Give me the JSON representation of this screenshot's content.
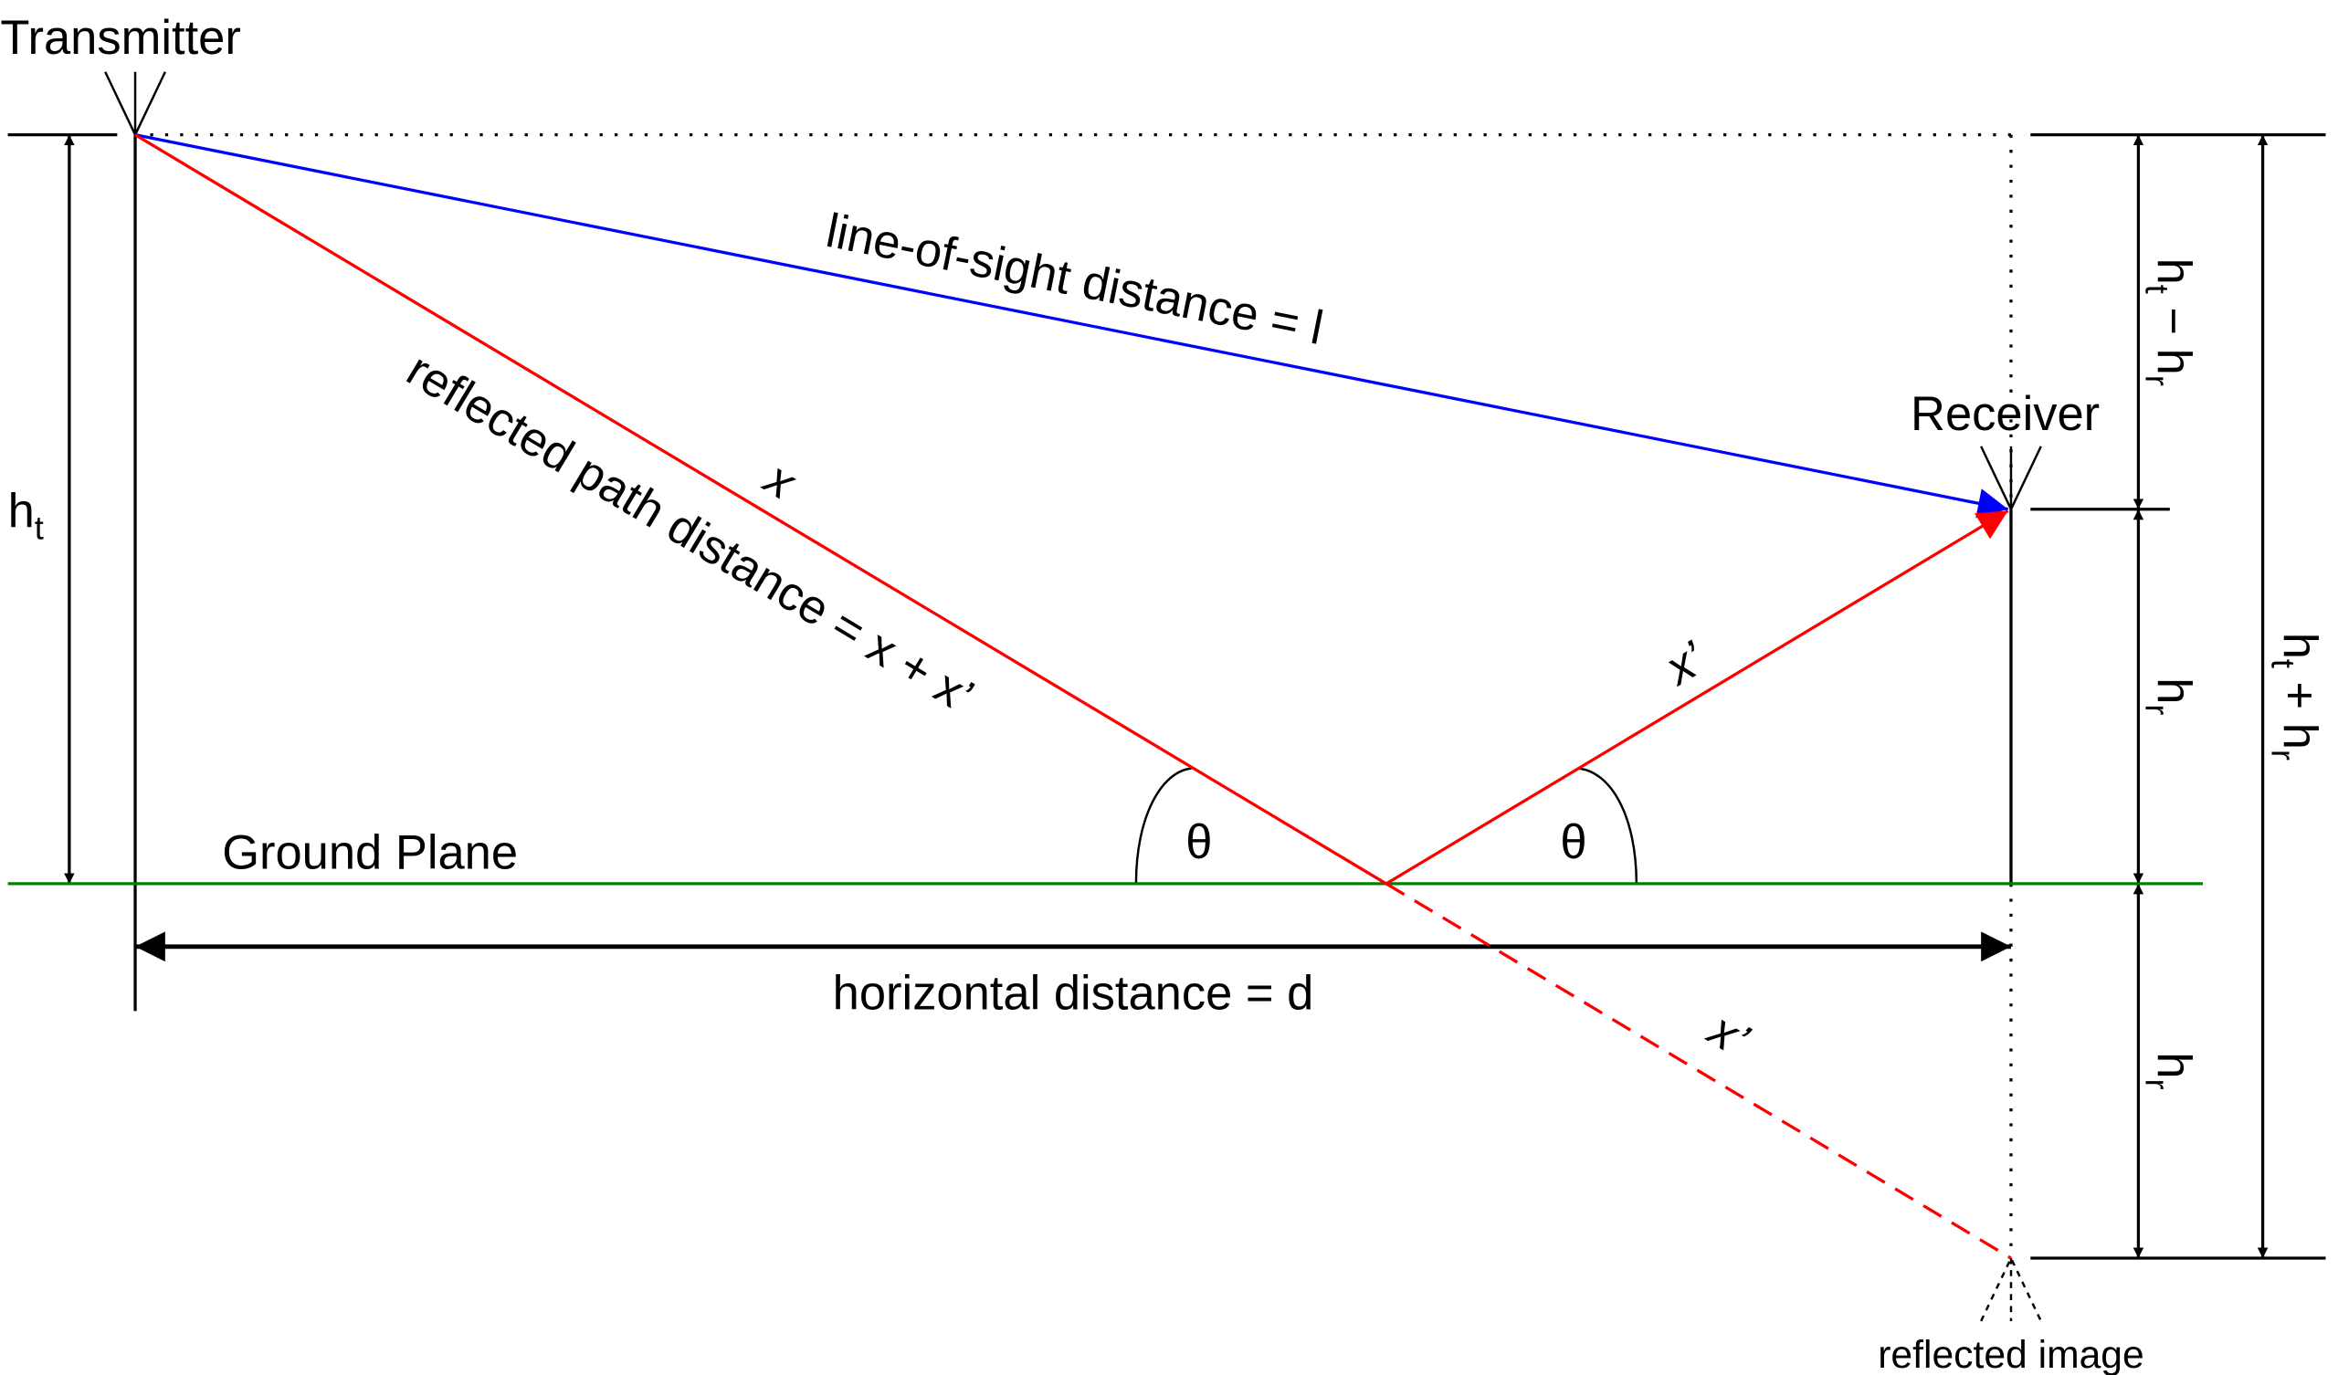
{
  "labels": {
    "transmitter": "Transmitter",
    "receiver": "Receiver",
    "ground_plane": "Ground Plane",
    "reflected_image": "reflected image",
    "los": "line-of-sight distance = l",
    "reflected_path": "reflected path distance = x + x’",
    "x": "x",
    "x_prime": "x’",
    "x_prime_image": "x’",
    "theta": "θ",
    "horizontal": "horizontal distance = d",
    "h": "h",
    "sub_t": "t",
    "sub_r": "r",
    "minus": " − h",
    "plus": " + h"
  },
  "colors": {
    "los": "#0000ff",
    "reflected": "#ff0000",
    "ground": "#008000"
  }
}
